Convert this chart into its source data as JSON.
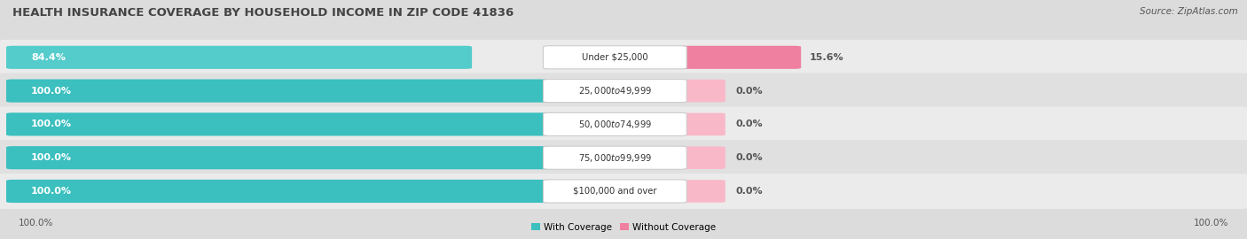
{
  "title": "HEALTH INSURANCE COVERAGE BY HOUSEHOLD INCOME IN ZIP CODE 41836",
  "source": "Source: ZipAtlas.com",
  "categories": [
    "Under $25,000",
    "$25,000 to $49,999",
    "$50,000 to $74,999",
    "$75,000 to $99,999",
    "$100,000 and over"
  ],
  "with_coverage": [
    84.4,
    100.0,
    100.0,
    100.0,
    100.0
  ],
  "without_coverage": [
    15.6,
    0.0,
    0.0,
    0.0,
    0.0
  ],
  "color_with": "#3BBFBF",
  "color_without": "#F080A0",
  "color_with_zero": "#60C8C8",
  "bg_color": "#dcdcdc",
  "row_bg": "#e8e8e8",
  "bottom_left_label": "100.0%",
  "bottom_right_label": "100.0%",
  "title_fontsize": 9.5,
  "label_fontsize": 8.0,
  "cat_fontsize": 7.2,
  "tick_fontsize": 7.5,
  "source_fontsize": 7.5
}
